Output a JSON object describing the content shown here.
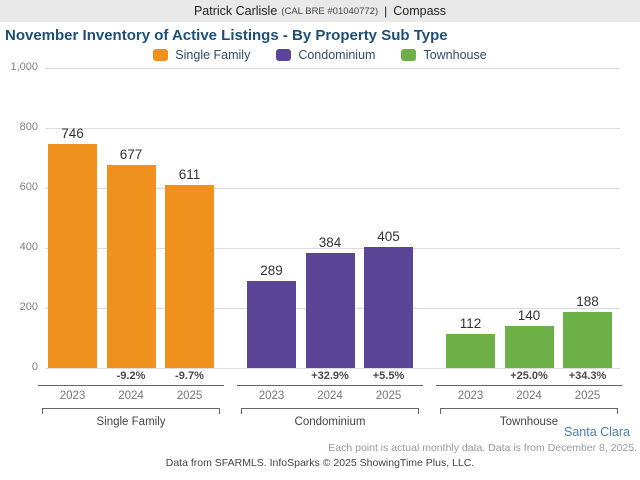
{
  "header": {
    "name": "Patrick Carlisle",
    "license": "(CAL BRE #01040772)",
    "separator": "|",
    "brand": "Compass"
  },
  "title": "November Inventory of Active Listings - By Property Sub Type",
  "legend": {
    "items": [
      {
        "label": "Single Family",
        "color": "#F0911E"
      },
      {
        "label": "Condominium",
        "color": "#5A4596"
      },
      {
        "label": "Townhouse",
        "color": "#6CB047"
      }
    ]
  },
  "chart_data": {
    "type": "bar",
    "title": "November Inventory of Active Listings - By Property Sub Type",
    "ylabel": "",
    "xlabel": "",
    "ylim": [
      0,
      1000
    ],
    "grid": true,
    "legend_position": "top",
    "yticks": [
      {
        "label": "0",
        "value": 0
      },
      {
        "label": "200",
        "value": 200
      },
      {
        "label": "400",
        "value": 400
      },
      {
        "label": "600",
        "value": 600
      },
      {
        "label": "800",
        "value": 800
      },
      {
        "label": "1,000",
        "value": 1000
      }
    ],
    "categories": [
      "2023",
      "2024",
      "2025"
    ],
    "groups": [
      {
        "name": "Single Family",
        "color": "#F0911E",
        "years": [
          "2023",
          "2024",
          "2025"
        ],
        "values": [
          746,
          677,
          611
        ],
        "pct_change": [
          "",
          "-9.2%",
          "-9.7%"
        ]
      },
      {
        "name": "Condominium",
        "color": "#5A4596",
        "years": [
          "2023",
          "2024",
          "2025"
        ],
        "values": [
          289,
          384,
          405
        ],
        "pct_change": [
          "",
          "+32.9%",
          "+5.5%"
        ]
      },
      {
        "name": "Townhouse",
        "color": "#6CB047",
        "years": [
          "2023",
          "2024",
          "2025"
        ],
        "values": [
          112,
          140,
          188
        ],
        "pct_change": [
          "",
          "+25.0%",
          "+34.3%"
        ]
      }
    ]
  },
  "region": "Santa Clara",
  "note": "Each point is actual monthly data. Data is from December 8, 2025.",
  "footer": "Data from SFARMLS. InfoSparks © 2025 ShowingTime Plus, LLC."
}
